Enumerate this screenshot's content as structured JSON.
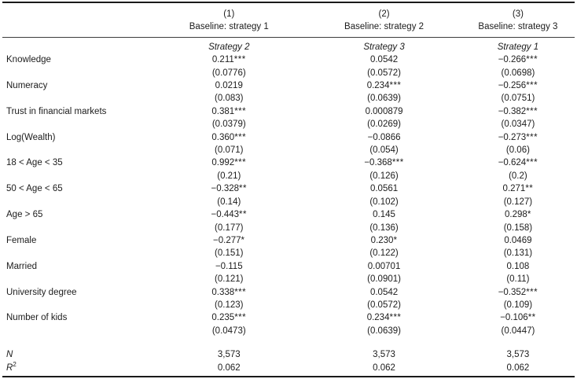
{
  "page": {
    "background": "#ffffff",
    "text_color": "#1c1c1c",
    "rule_color": "#1a1a1a"
  },
  "table": {
    "columns": [
      {
        "number": "(1)",
        "baseline": "Baseline: strategy 1",
        "strategy": "Strategy 2"
      },
      {
        "number": "(2)",
        "baseline": "Baseline: strategy 2",
        "strategy": "Strategy 3"
      },
      {
        "number": "(3)",
        "baseline": "Baseline: strategy 3",
        "strategy": "Strategy 1"
      }
    ],
    "rows": [
      {
        "label": "Knowledge",
        "cells": [
          {
            "coef": "0.211",
            "stars": "***",
            "se": "(0.0776)"
          },
          {
            "coef": "0.0542",
            "stars": "",
            "se": "(0.0572)"
          },
          {
            "coef": "−0.266",
            "stars": "***",
            "se": "(0.0698)"
          }
        ]
      },
      {
        "label": "Numeracy",
        "cells": [
          {
            "coef": "0.0219",
            "stars": "",
            "se": "(0.083)"
          },
          {
            "coef": "0.234",
            "stars": "***",
            "se": "(0.0639)"
          },
          {
            "coef": "−0.256",
            "stars": "***",
            "se": "(0.0751)"
          }
        ]
      },
      {
        "label": "Trust in financial markets",
        "cells": [
          {
            "coef": "0.381",
            "stars": "***",
            "se": "(0.0379)"
          },
          {
            "coef": "0.000879",
            "stars": "",
            "se": "(0.0269)"
          },
          {
            "coef": "−0.382",
            "stars": "***",
            "se": "(0.0347)"
          }
        ]
      },
      {
        "label": "Log(Wealth)",
        "cells": [
          {
            "coef": "0.360",
            "stars": "***",
            "se": "(0.071)"
          },
          {
            "coef": "−0.0866",
            "stars": "",
            "se": "(0.054)"
          },
          {
            "coef": "−0.273",
            "stars": "***",
            "se": "(0.06)"
          }
        ]
      },
      {
        "label": "18 < Age < 35",
        "cells": [
          {
            "coef": "0.992",
            "stars": "***",
            "se": "(0.21)"
          },
          {
            "coef": "−0.368",
            "stars": "***",
            "se": "(0.126)"
          },
          {
            "coef": "−0.624",
            "stars": "***",
            "se": "(0.2)"
          }
        ]
      },
      {
        "label": "50 < Age < 65",
        "cells": [
          {
            "coef": "−0.328",
            "stars": "**",
            "se": "(0.14)"
          },
          {
            "coef": "0.0561",
            "stars": "",
            "se": "(0.102)"
          },
          {
            "coef": "0.271",
            "stars": "**",
            "se": "(0.127)"
          }
        ]
      },
      {
        "label": "Age > 65",
        "cells": [
          {
            "coef": "−0.443",
            "stars": "**",
            "se": "(0.177)"
          },
          {
            "coef": "0.145",
            "stars": "",
            "se": "(0.136)"
          },
          {
            "coef": "0.298",
            "stars": "*",
            "se": "(0.158)"
          }
        ]
      },
      {
        "label": "Female",
        "cells": [
          {
            "coef": "−0.277",
            "stars": "*",
            "se": "(0.151)"
          },
          {
            "coef": "0.230",
            "stars": "*",
            "se": "(0.122)"
          },
          {
            "coef": "0.0469",
            "stars": "",
            "se": "(0.131)"
          }
        ]
      },
      {
        "label": "Married",
        "cells": [
          {
            "coef": "−0.115",
            "stars": "",
            "se": "(0.121)"
          },
          {
            "coef": "0.00701",
            "stars": "",
            "se": "(0.0901)"
          },
          {
            "coef": "0.108",
            "stars": "",
            "se": "(0.11)"
          }
        ]
      },
      {
        "label": "University degree",
        "cells": [
          {
            "coef": "0.338",
            "stars": "***",
            "se": "(0.123)"
          },
          {
            "coef": "0.0542",
            "stars": "",
            "se": "(0.0572)"
          },
          {
            "coef": "−0.352",
            "stars": "***",
            "se": "(0.109)"
          }
        ]
      },
      {
        "label": "Number of kids",
        "cells": [
          {
            "coef": "0.235",
            "stars": "***",
            "se": "(0.0473)"
          },
          {
            "coef": "0.234",
            "stars": "***",
            "se": "(0.0639)"
          },
          {
            "coef": "−0.106",
            "stars": "**",
            "se": "(0.0447)"
          }
        ]
      }
    ],
    "stats": [
      {
        "label": "N",
        "sup": "",
        "values": [
          "3,573",
          "3,573",
          "3,573"
        ]
      },
      {
        "label": "R",
        "sup": "2",
        "values": [
          "0.062",
          "0.062",
          "0.062"
        ]
      }
    ]
  }
}
